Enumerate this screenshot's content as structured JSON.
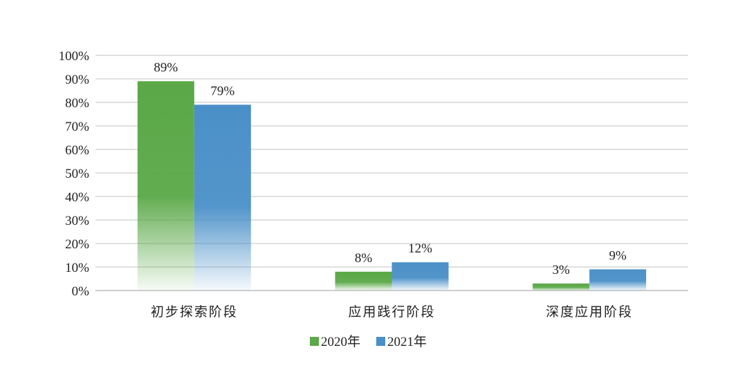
{
  "chart_data": {
    "type": "bar",
    "categories": [
      "初步探索阶段",
      "应用践行阶段",
      "深度应用阶段"
    ],
    "series": [
      {
        "name": "2020年",
        "values": [
          89,
          8,
          3
        ],
        "labels": [
          "89%",
          "8%",
          "3%"
        ],
        "color": "#5aa847"
      },
      {
        "name": "2021年",
        "values": [
          79,
          12,
          9
        ],
        "labels": [
          "79%",
          "12%",
          "9%"
        ],
        "color": "#4a90c8"
      }
    ],
    "y_ticks": [
      "0%",
      "10%",
      "20%",
      "30%",
      "40%",
      "50%",
      "60%",
      "70%",
      "80%",
      "90%",
      "100%"
    ],
    "ylim": [
      0,
      100
    ],
    "grid": true,
    "legend_position": "bottom-center",
    "title": "",
    "xlabel": "",
    "ylabel": ""
  }
}
